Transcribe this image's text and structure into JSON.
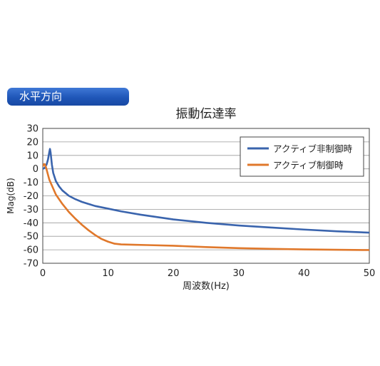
{
  "section_label": "水平方向",
  "chart_data": {
    "type": "line",
    "title": "振動伝達率",
    "xlabel": "周波数(Hz)",
    "ylabel": "Mag(dB)",
    "xlim": [
      0,
      50
    ],
    "ylim": [
      -70,
      30
    ],
    "xticks": [
      0,
      10,
      20,
      30,
      40,
      50
    ],
    "yticks": [
      30,
      20,
      10,
      0,
      -10,
      -20,
      -30,
      -40,
      -50,
      -60,
      -70
    ],
    "grid": true,
    "legend_position": "top-right",
    "series": [
      {
        "name": "アクティブ非制御時",
        "color": "#3a64ad",
        "points": [
          [
            0,
            0
          ],
          [
            0.2,
            0.5
          ],
          [
            0.4,
            1.5
          ],
          [
            0.6,
            3.5
          ],
          [
            0.8,
            7
          ],
          [
            1.0,
            12.5
          ],
          [
            1.1,
            14.8
          ],
          [
            1.2,
            12
          ],
          [
            1.4,
            3
          ],
          [
            1.6,
            -3
          ],
          [
            2,
            -9
          ],
          [
            2.5,
            -13
          ],
          [
            3,
            -16
          ],
          [
            4,
            -20
          ],
          [
            5,
            -22.5
          ],
          [
            6,
            -24.5
          ],
          [
            7,
            -26
          ],
          [
            8,
            -27.5
          ],
          [
            10,
            -29.5
          ],
          [
            12,
            -31.5
          ],
          [
            15,
            -34
          ],
          [
            20,
            -37.5
          ],
          [
            25,
            -40
          ],
          [
            30,
            -42
          ],
          [
            35,
            -43.5
          ],
          [
            40,
            -45
          ],
          [
            45,
            -46.3
          ],
          [
            50,
            -47.3
          ]
        ]
      },
      {
        "name": "アクティブ制御時",
        "color": "#e0782b",
        "points": [
          [
            0,
            2
          ],
          [
            0.2,
            3.5
          ],
          [
            0.3,
            3.5
          ],
          [
            0.5,
            1
          ],
          [
            1,
            -8
          ],
          [
            2,
            -19
          ],
          [
            3,
            -26
          ],
          [
            4,
            -32
          ],
          [
            5,
            -37
          ],
          [
            6,
            -41.5
          ],
          [
            7,
            -45.5
          ],
          [
            8,
            -49
          ],
          [
            9,
            -52
          ],
          [
            10,
            -54
          ],
          [
            11,
            -55.5
          ],
          [
            12,
            -56
          ],
          [
            14,
            -56.3
          ],
          [
            16,
            -56.5
          ],
          [
            20,
            -57
          ],
          [
            25,
            -58
          ],
          [
            30,
            -58.8
          ],
          [
            35,
            -59.3
          ],
          [
            40,
            -59.7
          ],
          [
            45,
            -60
          ],
          [
            50,
            -60.2
          ]
        ]
      }
    ]
  }
}
